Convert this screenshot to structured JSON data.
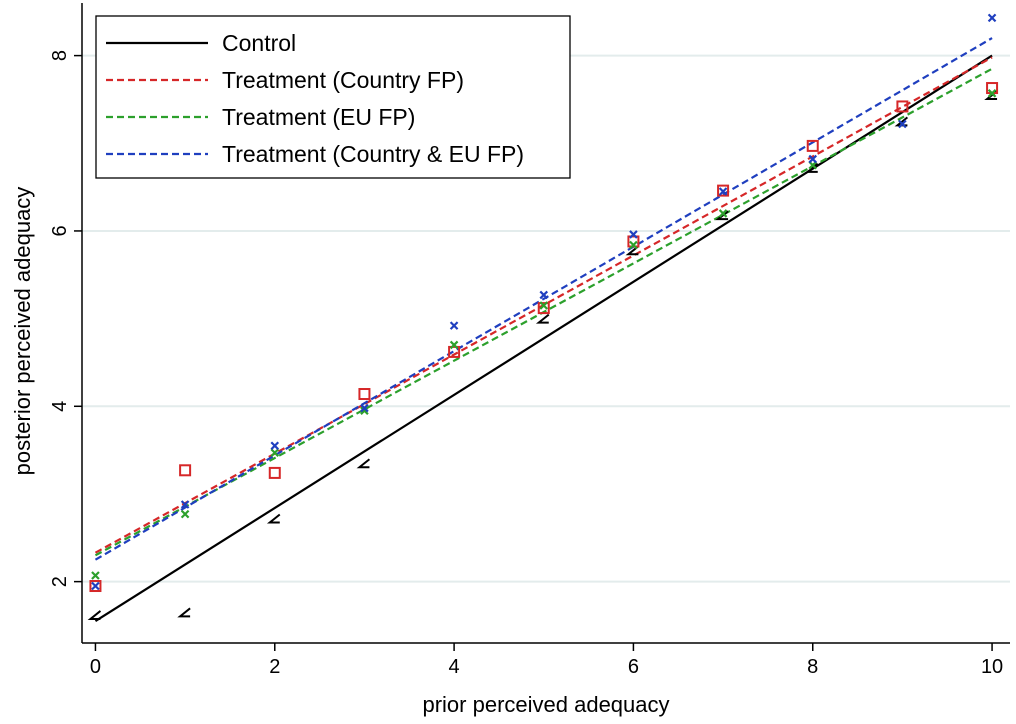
{
  "chart_data": {
    "type": "scatter",
    "xlabel": "prior perceived adequacy",
    "ylabel": "posterior perceived adequacy",
    "xlim": [
      -0.15,
      10.2
    ],
    "ylim": [
      1.3,
      8.6
    ],
    "x_ticks": [
      0,
      2,
      4,
      6,
      8,
      10
    ],
    "y_ticks": [
      2,
      4,
      6,
      8
    ],
    "grid": "horizontal",
    "legend_position": "top-left",
    "series": [
      {
        "name": "Control",
        "color": "#000000",
        "line_style": "solid",
        "marker": "angle",
        "fit": {
          "x": [
            0,
            10
          ],
          "y": [
            1.55,
            8.0
          ]
        },
        "points": {
          "x": [
            0,
            1,
            2,
            3,
            5,
            6,
            7,
            8,
            9,
            10
          ],
          "y": [
            1.62,
            1.65,
            2.72,
            3.35,
            5.0,
            5.78,
            6.18,
            6.72,
            7.25,
            7.55
          ]
        }
      },
      {
        "name": "Treatment (Country FP)",
        "color": "#d62728",
        "line_style": "dashed",
        "marker": "square",
        "fit": {
          "x": [
            0,
            10
          ],
          "y": [
            2.33,
            7.98
          ]
        },
        "points": {
          "x": [
            0,
            1,
            2,
            3,
            4,
            5,
            6,
            7,
            8,
            9,
            10
          ],
          "y": [
            1.95,
            3.27,
            3.24,
            4.14,
            4.62,
            5.12,
            5.88,
            6.46,
            6.97,
            7.42,
            7.63
          ]
        }
      },
      {
        "name": "Treatment (EU FP)",
        "color": "#2ca02c",
        "line_style": "dashed",
        "marker": "x",
        "fit": {
          "x": [
            0,
            10
          ],
          "y": [
            2.3,
            7.85
          ]
        },
        "points": {
          "x": [
            0,
            1,
            2,
            3,
            4,
            5,
            6,
            7,
            8,
            10
          ],
          "y": [
            2.07,
            2.77,
            3.47,
            3.95,
            4.7,
            5.15,
            5.84,
            6.2,
            6.75,
            7.57
          ]
        }
      },
      {
        "name": "Treatment (Country & EU FP)",
        "color": "#1f3fbf",
        "line_style": "dashed",
        "marker": "x",
        "fit": {
          "x": [
            0,
            10
          ],
          "y": [
            2.25,
            8.2
          ]
        },
        "points": {
          "x": [
            0,
            1,
            2,
            3,
            4,
            5,
            6,
            7,
            8,
            9,
            10
          ],
          "y": [
            1.95,
            2.88,
            3.55,
            3.98,
            4.92,
            5.27,
            5.96,
            6.45,
            6.82,
            7.22,
            8.43
          ]
        }
      }
    ]
  }
}
